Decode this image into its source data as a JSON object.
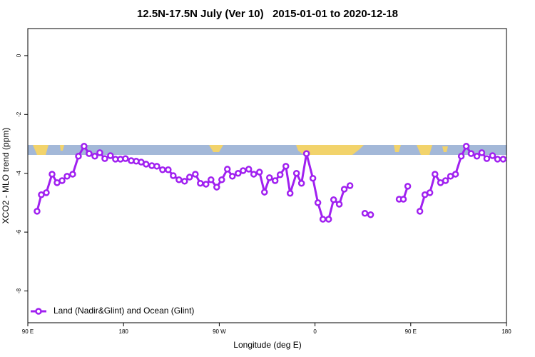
{
  "chart_data": {
    "type": "line",
    "title": "12.5N-17.5N July (Ver 10)   2015-01-01 to 2020-12-18",
    "x_label": "Longitude (deg E)",
    "y_label": "XCO2 - MLO trend (ppm)",
    "xlim": [
      90,
      540
    ],
    "ylim": [
      -9.08,
      0.92
    ],
    "xticks": [
      {
        "value": 90,
        "label": "90 E"
      },
      180,
      {
        "value": 270,
        "label": "90 W"
      },
      {
        "value": 360,
        "label": "0"
      },
      {
        "value": 450,
        "label": "90 E"
      },
      {
        "value": 540,
        "label": "180"
      }
    ],
    "yticks": [
      0,
      -2,
      -4,
      -6,
      -8
    ],
    "legend": "bottom-left",
    "x": [
      98.7,
      102.7,
      107.4,
      112.8,
      117.5,
      122.2,
      126.9,
      132.2,
      137.6,
      142.9,
      147.6,
      153.0,
      157.7,
      162.4,
      167.7,
      172.4,
      177.1,
      181.8,
      187.2,
      191.9,
      196.6,
      201.2,
      206.6,
      211.3,
      216.7,
      222.0,
      226.7,
      232.1,
      237.4,
      242.1,
      247.5,
      252.2,
      257.5,
      262.2,
      267.6,
      272.3,
      277.6,
      282.3,
      287.7,
      292.4,
      297.7,
      302.4,
      307.8,
      312.5,
      317.2,
      322.5,
      327.2,
      332.6,
      336.6,
      342.6,
      347.3,
      352.0,
      358.0,
      362.7,
      367.4,
      372.8,
      377.5,
      382.8,
      387.5,
      392.9,
      400,
      406.9,
      412.3,
      425,
      439.1,
      443.1,
      447.2,
      453,
      458.6,
      463.3,
      468.0,
      472.8,
      478.0,
      482.7,
      487.4,
      492.1,
      497.5,
      502.2,
      506.8,
      512.2,
      516.8,
      521.5,
      526.9,
      531.6,
      536.9
    ],
    "series": [
      {
        "name": "Land (Nadir&Glint) and Ocean (Glint)",
        "color": "#a020f0",
        "values": [
          -5.29,
          -4.73,
          -4.66,
          -4.03,
          -4.32,
          -4.25,
          -4.1,
          -4.03,
          -3.42,
          -3.08,
          -3.33,
          -3.42,
          -3.3,
          -3.5,
          -3.4,
          -3.52,
          -3.52,
          -3.5,
          -3.57,
          -3.59,
          -3.62,
          -3.69,
          -3.74,
          -3.76,
          -3.88,
          -3.88,
          -4.08,
          -4.22,
          -4.27,
          -4.13,
          -4.03,
          -4.34,
          -4.37,
          -4.22,
          -4.47,
          -4.22,
          -3.86,
          -4.1,
          -4.0,
          -3.91,
          -3.86,
          -4.03,
          -3.96,
          -4.64,
          -4.15,
          -4.25,
          -4.05,
          -3.76,
          -4.68,
          -4.0,
          -4.34,
          -3.33,
          -4.17,
          -5.0,
          -5.56,
          -5.56,
          -4.9,
          -5.05,
          -4.54,
          -4.42,
          null,
          -5.36,
          -5.41,
          null,
          -4.88,
          -4.88,
          -4.44,
          null,
          -5.29,
          -4.73,
          -4.66,
          -4.03,
          -4.32,
          -4.25,
          -4.1,
          -4.03,
          -3.42,
          -3.08,
          -3.33,
          -3.42,
          -3.3,
          -3.5,
          -3.4,
          -3.52,
          -3.52
        ]
      }
    ]
  }
}
